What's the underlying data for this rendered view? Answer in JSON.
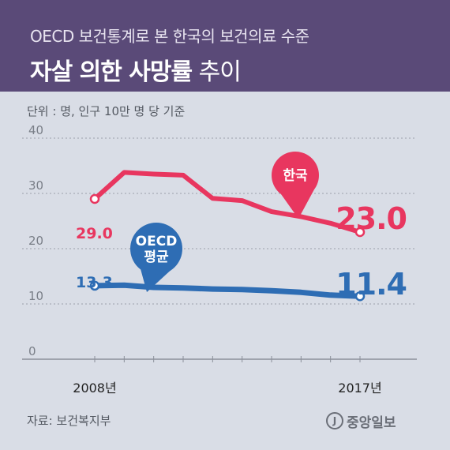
{
  "header": {
    "subtitle": "OECD 보건통계로 본 한국의 보건의료 수준",
    "title_strong": "자살 의한 사망률",
    "title_rest": "추이"
  },
  "unit_label": "단위 : 명, 인구 10만 명 당 기준",
  "source_label": "자료: 보건복지부",
  "logo": {
    "mark": "J",
    "text": "중앙일보"
  },
  "colors": {
    "korea": "#e8365f",
    "oecd": "#2e6db4",
    "header_bg": "#5a4a78"
  },
  "chart_data": {
    "type": "line",
    "x": [
      2008,
      2009,
      2010,
      2011,
      2012,
      2013,
      2014,
      2015,
      2016,
      2017
    ],
    "xtick_labels": [
      "2008년",
      "2017년"
    ],
    "ylim": [
      0,
      40
    ],
    "yticks": [
      0,
      10,
      20,
      30,
      40
    ],
    "series": [
      {
        "name": "한국",
        "values": [
          29.0,
          33.8,
          33.5,
          33.3,
          29.1,
          28.7,
          26.7,
          25.8,
          24.6,
          23.0
        ],
        "start_label": "29.0",
        "end_label": "23.0"
      },
      {
        "name": "OECD 평균",
        "values": [
          13.3,
          13.4,
          13.0,
          12.9,
          12.7,
          12.6,
          12.4,
          12.1,
          11.6,
          11.4
        ],
        "start_label": "13.3",
        "end_label": "11.4"
      }
    ],
    "grid": true
  }
}
